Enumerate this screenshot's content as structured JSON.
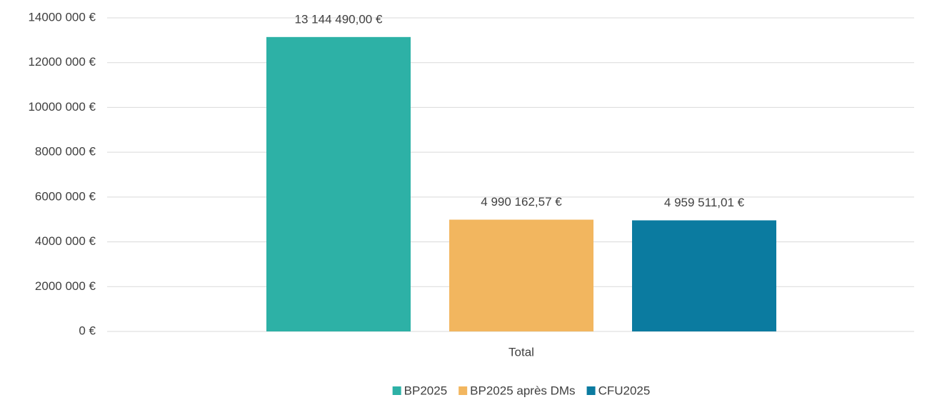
{
  "chart_data": {
    "type": "bar",
    "categories": [
      "Total"
    ],
    "series": [
      {
        "name": "BP2025",
        "color": "#2db1a6",
        "values": [
          13144490
        ],
        "value_labels": [
          "13 144 490,00 €"
        ]
      },
      {
        "name": "BP2025 après DMs",
        "color": "#f2b65f",
        "values": [
          4990162.57
        ],
        "value_labels": [
          "4 990 162,57 €"
        ]
      },
      {
        "name": "CFU2025",
        "color": "#0b7ba0",
        "values": [
          4959511.01
        ],
        "value_labels": [
          "4 959 511,01 €"
        ]
      }
    ],
    "ylim": [
      0,
      14000000
    ],
    "yticks": [
      {
        "value": 0,
        "label": "0 €"
      },
      {
        "value": 2000000,
        "label": "2000 000 €"
      },
      {
        "value": 4000000,
        "label": "4000 000 €"
      },
      {
        "value": 6000000,
        "label": "6000 000 €"
      },
      {
        "value": 8000000,
        "label": "8000 000 €"
      },
      {
        "value": 10000000,
        "label": "10000 000 €"
      },
      {
        "value": 12000000,
        "label": "12000 000 €"
      },
      {
        "value": 14000000,
        "label": "14000 000 €"
      }
    ],
    "grid": true,
    "legend": "bottom"
  }
}
